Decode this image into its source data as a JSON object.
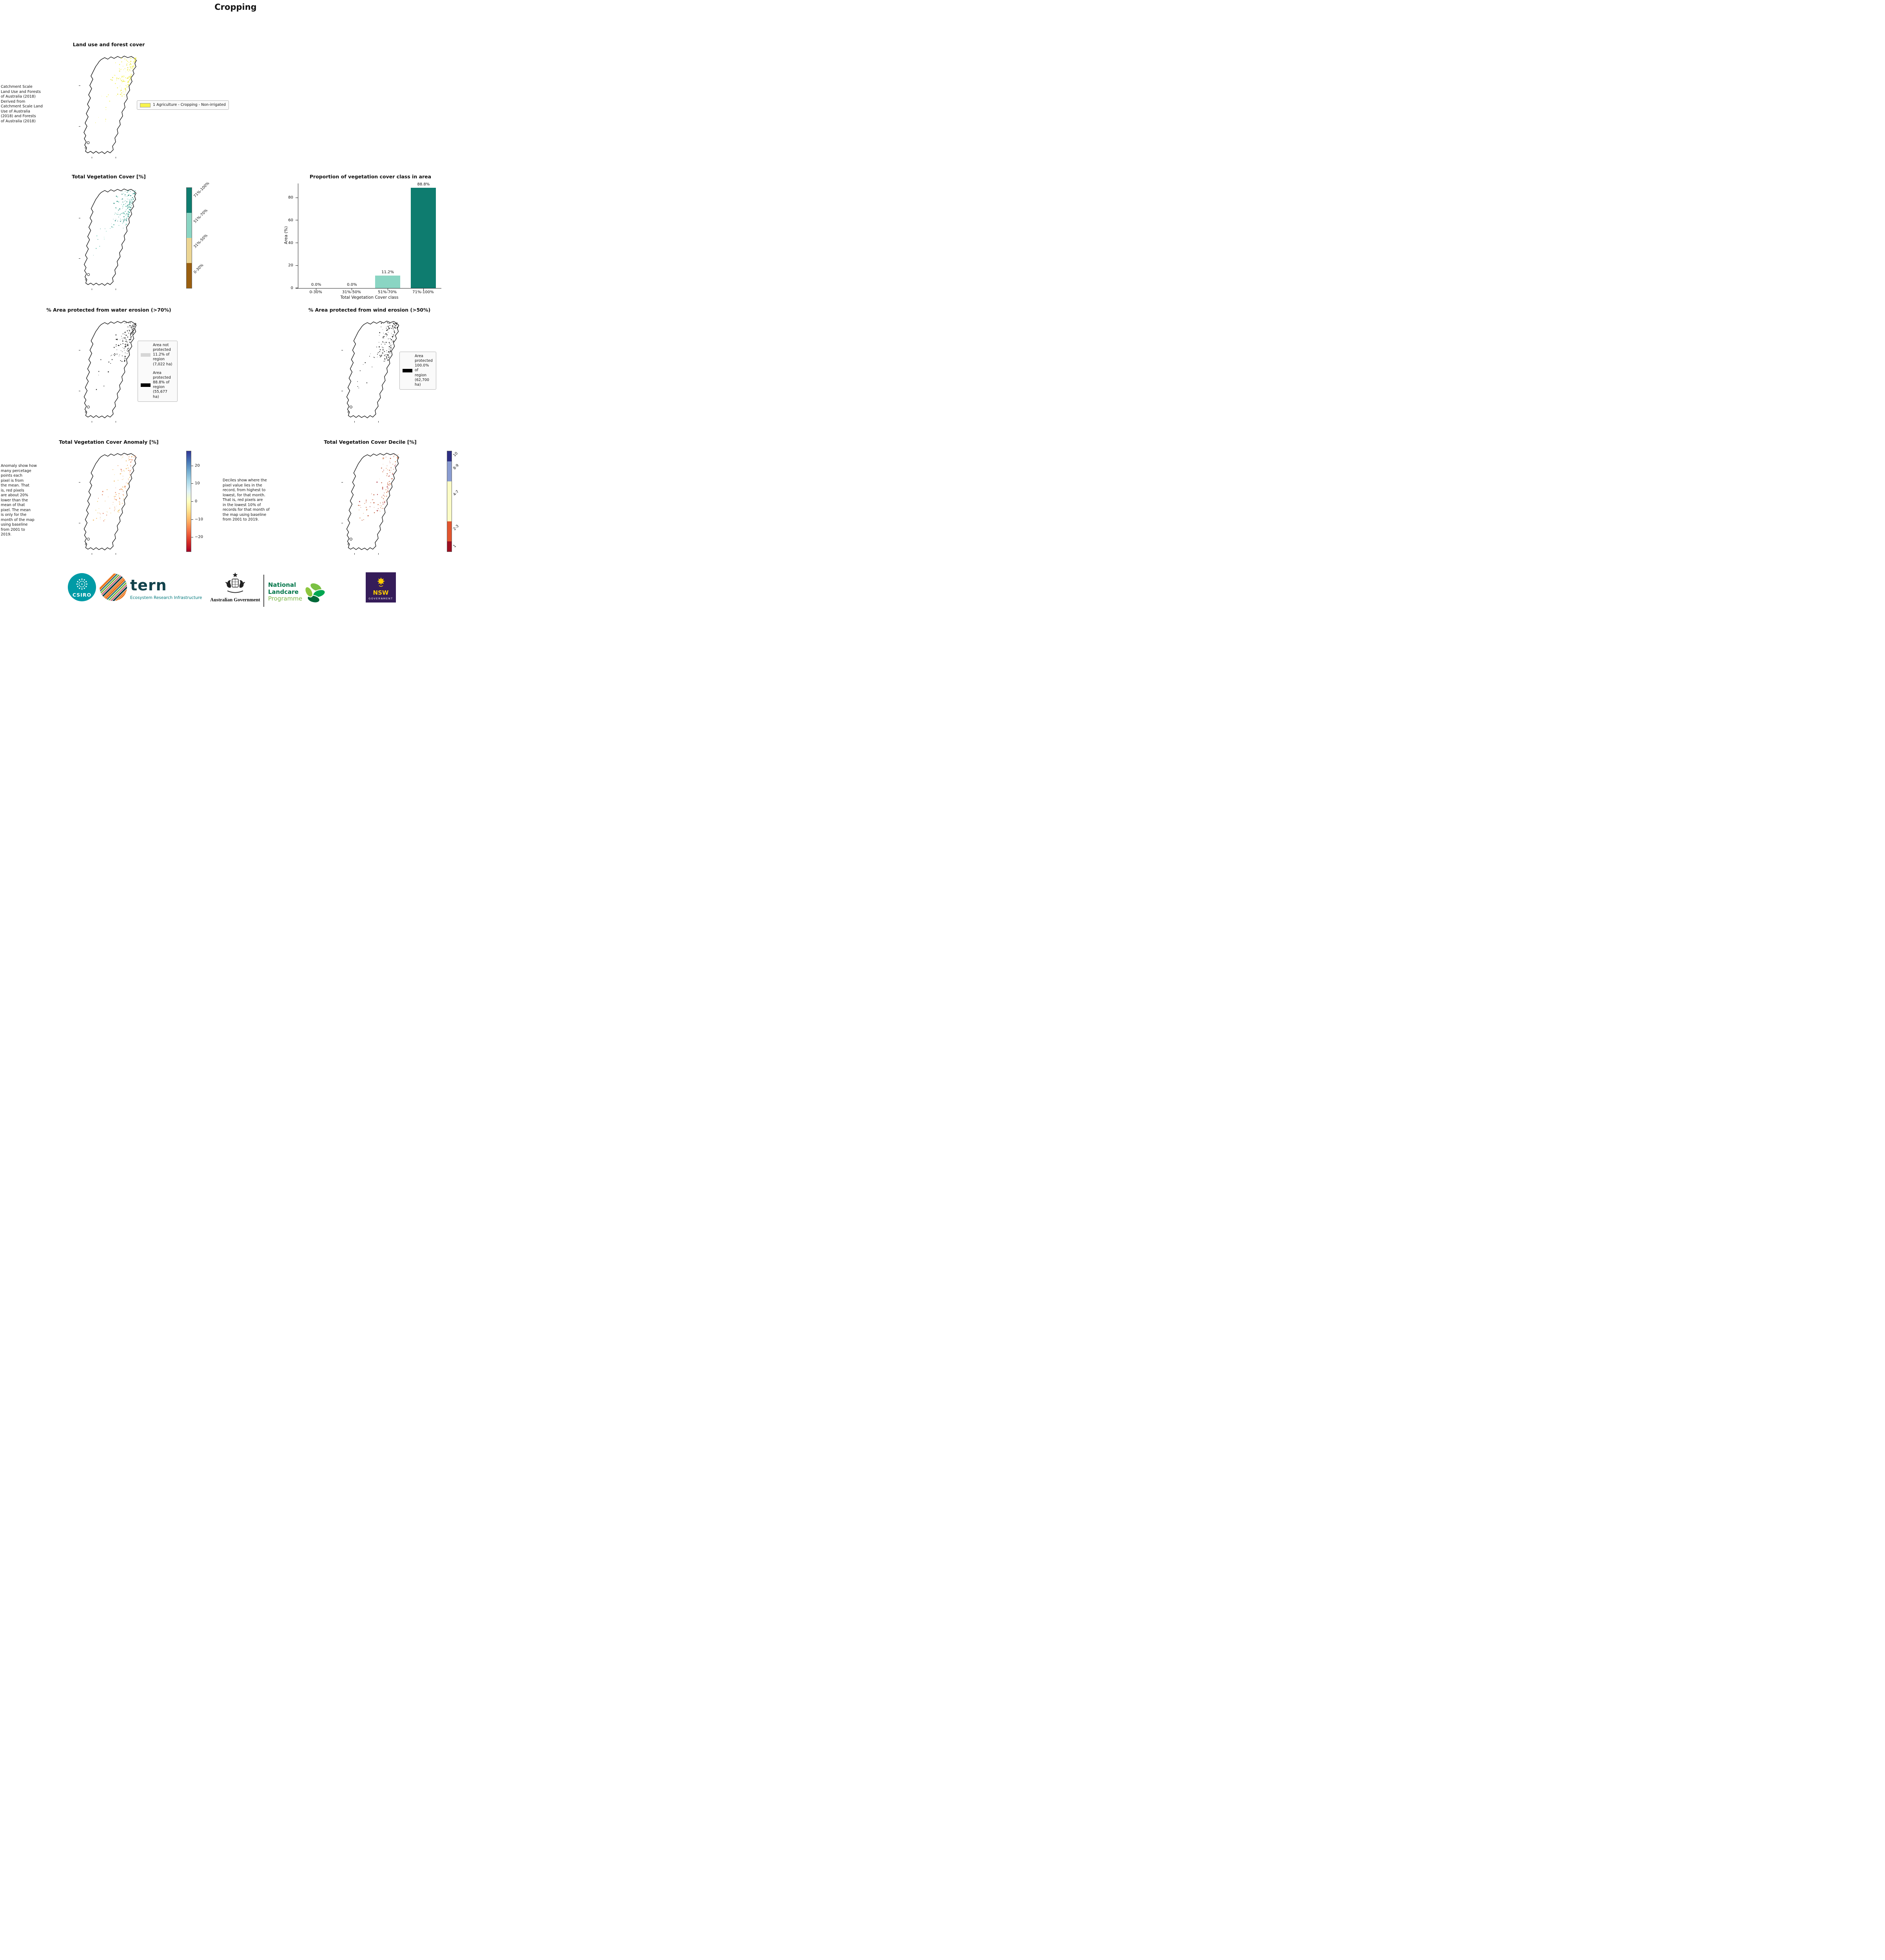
{
  "page": {
    "title": "Cropping"
  },
  "landuse": {
    "title": "Land use and forest cover",
    "side_note": "Catchment Scale\nLand Use and Forests\nof Australia (2018)\nDerived from\nCatchment Scale Land\nUse of Australia\n(2018) and Forests\nof Australia (2018)",
    "legend": [
      {
        "label": "1 Agriculture - Cropping - Non-irrigated",
        "color": "#f7f34c"
      }
    ]
  },
  "veg_cover": {
    "title": "Total Vegetation Cover [%]",
    "colorbar": [
      {
        "label": "71%-100%",
        "color": "#0e7c6f",
        "span": 25
      },
      {
        "label": "51%-70%",
        "color": "#8ad5c3",
        "span": 25
      },
      {
        "label": "31%-50%",
        "color": "#ecd593",
        "span": 25
      },
      {
        "label": "0-30%",
        "color": "#9a5f10",
        "span": 25
      }
    ]
  },
  "chart_data": {
    "type": "bar",
    "title": "Proportion of vegetation cover class in area",
    "categories": [
      "0-30%",
      "31%-50%",
      "51%-70%",
      "71%-100%"
    ],
    "values": [
      0.0,
      0.0,
      11.2,
      88.8
    ],
    "value_labels": [
      "0.0%",
      "0.0%",
      "11.2%",
      "88.8%"
    ],
    "bar_colors": [
      "#9a5f10",
      "#ecd593",
      "#8ad5c3",
      "#0e7c6f"
    ],
    "xlabel": "Total Vegetation Cover class",
    "ylabel": "Area (%)",
    "yticks": [
      0,
      20,
      40,
      60,
      80
    ],
    "ylim": [
      0,
      92.5
    ],
    "grid": false,
    "legend_position": "none"
  },
  "water_erosion": {
    "title": "% Area protected from water erosion (>70%)",
    "legend": [
      {
        "label": "Area not\nprotected\n11.2% of\nregion\n(7,022 ha)",
        "color": "#d6d6d6"
      },
      {
        "label": "Area\nprotected\n88.8% of\nregion\n(55,677\nha)",
        "color": "#000000"
      }
    ]
  },
  "wind_erosion": {
    "title": "% Area protected from wind erosion (>50%)",
    "legend": [
      {
        "label": "Area\nprotected\n100.0% of\nregion\n(62,700\nha)",
        "color": "#000000"
      }
    ]
  },
  "anomaly": {
    "title": "Total Vegetation Cover Anomaly [%]",
    "side_note": "Anomaly show how\nmany percetage\npoints each\npixel is from\nthe mean. That\nis, red pixels\nare about 20%\nlower than the\nmean of that\npixel. The mean\nis only for the\nmonth of the map\nusing baseline\nfrom 2001 to\n2019.",
    "colorbar_ticks": [
      "20",
      "10",
      "0",
      "−10",
      "−20"
    ],
    "gradient_stops": [
      "#a50026",
      "#d73027",
      "#f46d43",
      "#fdae61",
      "#fee08b",
      "#ffffbf",
      "#e0f3f8",
      "#abd9e9",
      "#74add1",
      "#4575b4",
      "#313695"
    ]
  },
  "decile": {
    "title": "Total Vegetation Cover Decile [%]",
    "note": "Deciles show where the\npixel value lies in the\nrecord, from highest to\nlowest, for that month.\nThat is, red pixels are\nin the lowest 10% of\nrecords for that month of\nthe map using baseline\nfrom 2001 to 2019.",
    "colorbar": [
      {
        "label": "10",
        "color": "#2d2e83",
        "span": 10
      },
      {
        "label": "8-9",
        "color": "#8a9cd1",
        "span": 20
      },
      {
        "label": "4-7",
        "color": "#fbfcc6",
        "span": 40
      },
      {
        "label": "2-3",
        "color": "#e1552f",
        "span": 20
      },
      {
        "label": "1",
        "color": "#9c0f21",
        "span": 10
      }
    ]
  },
  "footer": {
    "csiro_label": "CSIRO",
    "tern_label": "tern",
    "tern_subtitle": "Ecosystem Research Infrastructure",
    "aus_gov_label": "Australian Government",
    "landcare_line1": "National",
    "landcare_line2": "Landcare",
    "landcare_line3": "Programme",
    "nsw_label": "NSW",
    "nsw_sublabel": "GOVERNMENT"
  }
}
